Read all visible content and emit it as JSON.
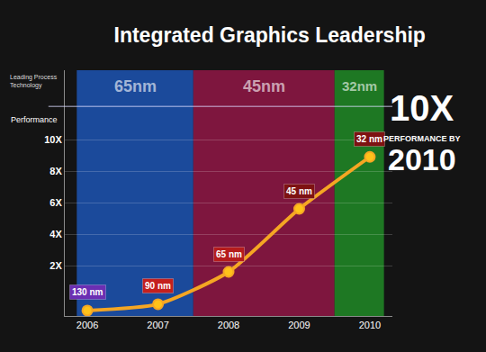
{
  "chart_data": {
    "type": "line",
    "title": "Integrated Graphics Leadership",
    "categories": [
      "2006",
      "2007",
      "2008",
      "2009",
      "2010"
    ],
    "values": [
      -0.85,
      -0.45,
      1.6,
      5.6,
      8.9
    ],
    "color": "#f5a623",
    "marker": "circle",
    "ylim": [
      -1.2,
      14.4
    ],
    "yticks": [
      {
        "value": 2,
        "label": "2X"
      },
      {
        "value": 4,
        "label": "4X"
      },
      {
        "value": 6,
        "label": "6X"
      },
      {
        "value": 8,
        "label": "8X"
      },
      {
        "value": 10,
        "label": "10X"
      }
    ],
    "ylabel": "Performance",
    "grid": true,
    "annotations": [
      {
        "category": "2006",
        "text": "130 nm",
        "color": "#6b2fb3"
      },
      {
        "category": "2007",
        "text": "90 nm",
        "color": "#c4201e"
      },
      {
        "category": "2008",
        "text": "65 nm",
        "color": "#b51c1c"
      },
      {
        "category": "2009",
        "text": "45 nm",
        "color": "#7e1212"
      },
      {
        "category": "2010",
        "text": "32 nm",
        "color": "#7e1212"
      }
    ],
    "bands_title": [
      "Leading Process",
      "Technology"
    ],
    "bands": [
      {
        "label": "65nm",
        "from": "2006",
        "to": "2007",
        "color": "#1f5fd0"
      },
      {
        "label": "45nm",
        "from": "2008",
        "to": "2009",
        "color": "#a8184f"
      },
      {
        "label": "32nm",
        "from": "2010",
        "to": "2010",
        "color": "#22a02a"
      }
    ],
    "callout": [
      "10X",
      "PERFORMANCE BY",
      "2010"
    ]
  }
}
